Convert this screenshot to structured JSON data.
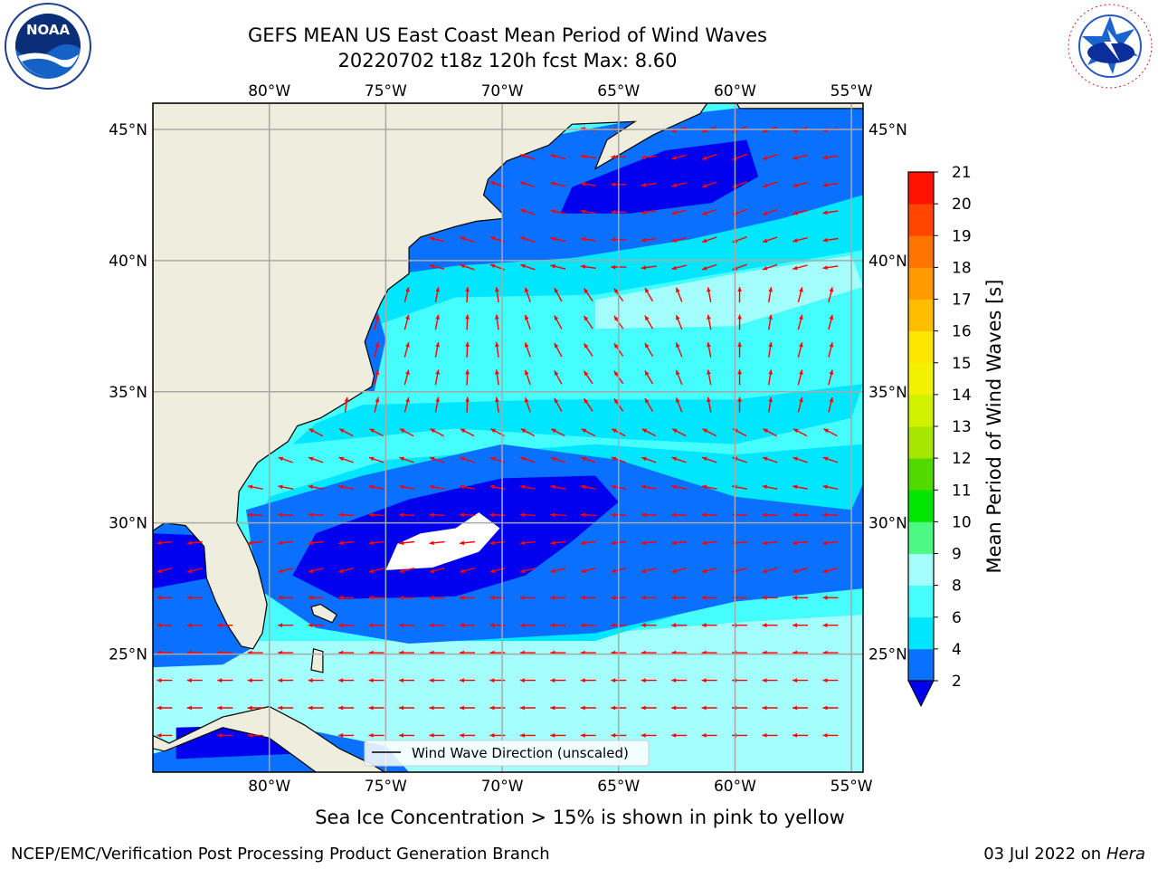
{
  "header": {
    "title_line1": "GEFS MEAN US East Coast Mean Period of Wind Waves",
    "title_line2": "20220702 t18z 120h fcst   Max: 8.60"
  },
  "logos": {
    "left": {
      "icon": "noaa-logo",
      "text": "NOAA",
      "ring_text": "NATIONAL OCEANIC AND ATMOSPHERIC ADMINISTRATION · U.S. DEPARTMENT OF COMMERCE"
    },
    "right": {
      "icon": "nws-logo",
      "ring_text": "NATIONAL WEATHER SERVICE"
    }
  },
  "map": {
    "projection": "plate-carree",
    "lon_range": [
      -85,
      -54.5
    ],
    "lat_range": [
      20.5,
      46
    ],
    "lon_ticks": [
      "80°W",
      "75°W",
      "70°W",
      "65°W",
      "60°W",
      "55°W"
    ],
    "lat_ticks": [
      "45°N",
      "40°N",
      "35°N",
      "30°N",
      "25°N"
    ],
    "grid": true,
    "legend": {
      "label": "Wind Wave Direction (unscaled)",
      "placement": "lower-center"
    },
    "arrow_color": "#ff0000",
    "land_color": "#efedde",
    "ice_note": "Sea Ice Concentration > 15% is shown in pink to yellow"
  },
  "colorbar": {
    "label": "Mean Period of Wind Waves [s]",
    "levels": [
      2,
      4,
      6,
      8,
      9,
      10,
      11,
      12,
      13,
      14,
      15,
      16,
      17,
      18,
      19,
      20,
      21
    ],
    "tick_labels": [
      "2",
      "4",
      "6",
      "8",
      "9",
      "10",
      "11",
      "12",
      "13",
      "14",
      "15",
      "16",
      "17",
      "18",
      "19",
      "20",
      "21"
    ],
    "colors": [
      "#0a70ff",
      "#00e6ff",
      "#45fdfd",
      "#a4fffc",
      "#4cf985",
      "#00e600",
      "#52d900",
      "#a6e600",
      "#d0f200",
      "#f2f200",
      "#ffe600",
      "#ffbf00",
      "#ff9a00",
      "#ff7300",
      "#ff4500",
      "#ff1200"
    ],
    "under_color": "#0000ee",
    "extend": "min"
  },
  "footer": {
    "left": "NCEP/EMC/Verification Post Processing Product Generation Branch",
    "right_prefix": "03 Jul 2022 on ",
    "right_host": "Hera"
  }
}
